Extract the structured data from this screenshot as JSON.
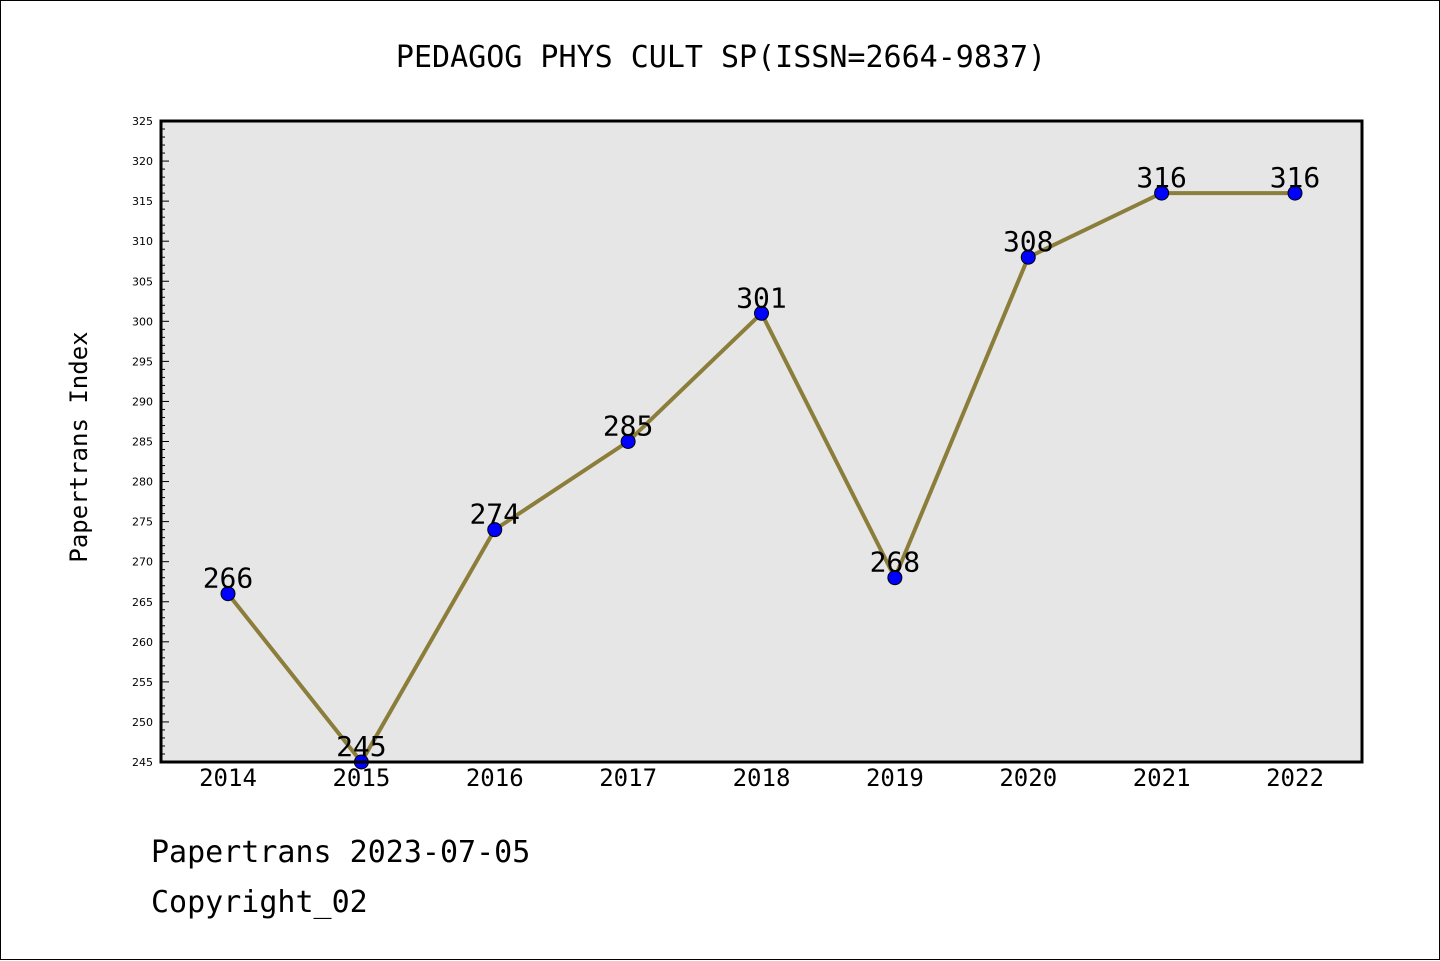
{
  "footer": {
    "date_line": "Papertrans 2023-07-05",
    "copyright_line": "Copyright_02"
  },
  "colors": {
    "line": "#8b7d3a",
    "marker": "#0000ff",
    "plot_background": "#e6e6e6",
    "frame": "#000000"
  },
  "chart_data": {
    "type": "line",
    "title": "PEDAGOG PHYS CULT SP(ISSN=2664-9837)",
    "xlabel": "",
    "ylabel": "Papertrans Index",
    "categories": [
      "2014",
      "2015",
      "2016",
      "2017",
      "2018",
      "2019",
      "2020",
      "2021",
      "2022"
    ],
    "values": [
      266,
      245,
      274,
      285,
      301,
      268,
      308,
      316,
      316
    ],
    "data_labels": [
      "266",
      "245",
      "274",
      "285",
      "301",
      "268",
      "308",
      "316",
      "316"
    ],
    "ylim": [
      245,
      325
    ],
    "yticks": [
      "245",
      "250",
      "255",
      "260",
      "265",
      "270",
      "275",
      "280",
      "285",
      "290",
      "295",
      "300",
      "305",
      "310",
      "315",
      "320",
      "325"
    ],
    "ytick_step": 5,
    "yminor_step": 1,
    "grid": false,
    "legend": "none"
  }
}
